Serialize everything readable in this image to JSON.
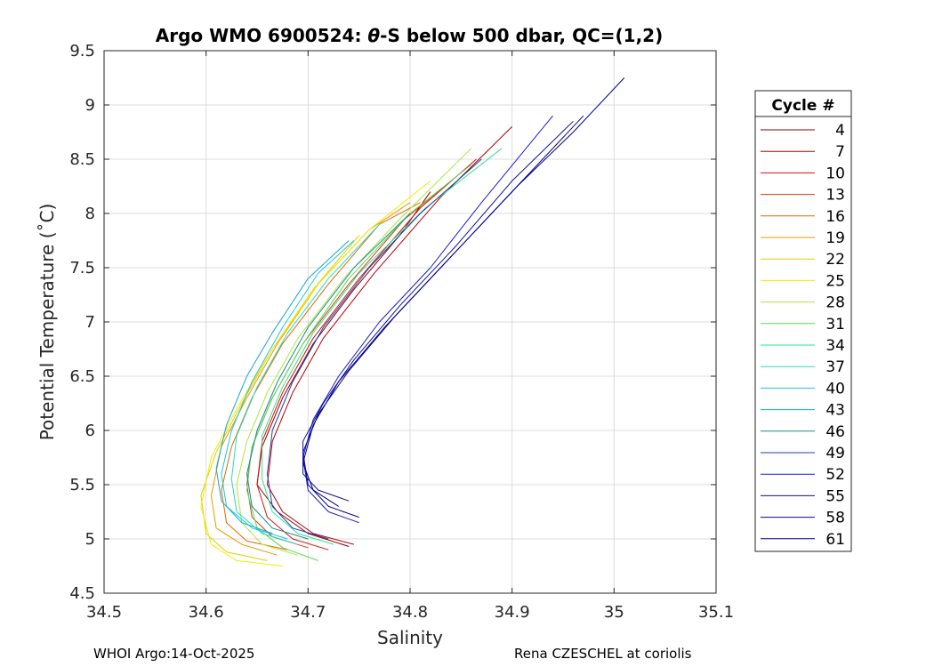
{
  "chart_data": {
    "type": "line",
    "title": "Argo WMO 6900524: θ-S below 500 dbar,  QC=(1,2)",
    "title_parts": {
      "pre": "Argo WMO 6900524: ",
      "theta": "θ",
      "post": "-S below 500 dbar,  QC=(1,2)"
    },
    "xlabel": "Salinity",
    "ylabel": "Potential Temperature (˚C)",
    "xlim": [
      34.5,
      35.1
    ],
    "ylim": [
      4.5,
      9.5
    ],
    "xticks": [
      "34.5",
      "34.6",
      "34.7",
      "34.8",
      "34.9",
      "35",
      "35.1"
    ],
    "yticks": [
      "4.5",
      "5",
      "5.5",
      "6",
      "6.5",
      "7",
      "7.5",
      "8",
      "8.5",
      "9",
      "9.5"
    ],
    "grid": true,
    "legend_position": "right",
    "legend_title": "Cycle #",
    "legend_entries": [
      {
        "label": "4",
        "color": "#8b0000"
      },
      {
        "label": "7",
        "color": "#b30000"
      },
      {
        "label": "10",
        "color": "#dd1010"
      },
      {
        "label": "13",
        "color": "#e03a10"
      },
      {
        "label": "16",
        "color": "#dd6a00"
      },
      {
        "label": "19",
        "color": "#e79a00"
      },
      {
        "label": "22",
        "color": "#e8cc00"
      },
      {
        "label": "25",
        "color": "#f0ec00"
      },
      {
        "label": "28",
        "color": "#aee63a"
      },
      {
        "label": "31",
        "color": "#55dd55"
      },
      {
        "label": "34",
        "color": "#2ee68a"
      },
      {
        "label": "37",
        "color": "#22e0c0"
      },
      {
        "label": "40",
        "color": "#18c8e0"
      },
      {
        "label": "43",
        "color": "#1aa8c8"
      },
      {
        "label": "46",
        "color": "#148c8c"
      },
      {
        "label": "49",
        "color": "#1f3fb0"
      },
      {
        "label": "52",
        "color": "#1a1ad0"
      },
      {
        "label": "55",
        "color": "#101090"
      },
      {
        "label": "58",
        "color": "#0a0a80"
      },
      {
        "label": "61",
        "color": "#00008b"
      }
    ],
    "series": [
      {
        "name": "4",
        "color": "#8b0000",
        "points": [
          [
            34.74,
            4.93
          ],
          [
            34.7,
            5.05
          ],
          [
            34.67,
            5.25
          ],
          [
            34.65,
            5.5
          ],
          [
            34.655,
            5.85
          ],
          [
            34.675,
            6.3
          ],
          [
            34.705,
            6.8
          ],
          [
            34.745,
            7.3
          ],
          [
            34.79,
            7.8
          ],
          [
            34.82,
            8.2
          ]
        ]
      },
      {
        "name": "7",
        "color": "#b30000",
        "points": [
          [
            34.745,
            4.95
          ],
          [
            34.705,
            5.05
          ],
          [
            34.675,
            5.25
          ],
          [
            34.66,
            5.5
          ],
          [
            34.665,
            5.9
          ],
          [
            34.685,
            6.35
          ],
          [
            34.715,
            6.85
          ],
          [
            34.765,
            7.45
          ],
          [
            34.83,
            8.15
          ],
          [
            34.9,
            8.8
          ]
        ]
      },
      {
        "name": "10",
        "color": "#dd1010",
        "points": [
          [
            34.72,
            4.9
          ],
          [
            34.685,
            5.0
          ],
          [
            34.66,
            5.2
          ],
          [
            34.65,
            5.5
          ],
          [
            34.655,
            5.9
          ],
          [
            34.675,
            6.35
          ],
          [
            34.705,
            6.85
          ],
          [
            34.75,
            7.4
          ],
          [
            34.81,
            8.05
          ],
          [
            34.865,
            8.5
          ]
        ]
      },
      {
        "name": "13",
        "color": "#e03a10",
        "points": [
          [
            34.7,
            4.92
          ],
          [
            34.665,
            5.02
          ],
          [
            34.645,
            5.2
          ],
          [
            34.64,
            5.5
          ],
          [
            34.645,
            5.85
          ],
          [
            34.665,
            6.3
          ],
          [
            34.695,
            6.8
          ],
          [
            34.74,
            7.35
          ],
          [
            34.795,
            7.95
          ],
          [
            34.84,
            8.3
          ]
        ]
      },
      {
        "name": "16",
        "color": "#dd6a00",
        "points": [
          [
            34.68,
            4.9
          ],
          [
            34.64,
            4.98
          ],
          [
            34.62,
            5.15
          ],
          [
            34.615,
            5.45
          ],
          [
            34.625,
            5.85
          ],
          [
            34.645,
            6.3
          ],
          [
            34.675,
            6.8
          ],
          [
            34.72,
            7.35
          ],
          [
            34.77,
            7.9
          ],
          [
            34.81,
            8.1
          ]
        ]
      },
      {
        "name": "19",
        "color": "#e79a00",
        "points": [
          [
            34.67,
            4.85
          ],
          [
            34.635,
            4.95
          ],
          [
            34.61,
            5.1
          ],
          [
            34.605,
            5.4
          ],
          [
            34.615,
            5.85
          ],
          [
            34.64,
            6.3
          ],
          [
            34.67,
            6.8
          ],
          [
            34.71,
            7.35
          ],
          [
            34.76,
            7.85
          ],
          [
            34.8,
            8.1
          ]
        ]
      },
      {
        "name": "22",
        "color": "#e8cc00",
        "points": [
          [
            34.66,
            4.8
          ],
          [
            34.62,
            4.88
          ],
          [
            34.6,
            5.05
          ],
          [
            34.595,
            5.4
          ],
          [
            34.61,
            5.8
          ],
          [
            34.635,
            6.25
          ],
          [
            34.665,
            6.75
          ],
          [
            34.705,
            7.3
          ],
          [
            34.75,
            7.8
          ]
        ]
      },
      {
        "name": "25",
        "color": "#f0ec00",
        "points": [
          [
            34.675,
            4.75
          ],
          [
            34.63,
            4.8
          ],
          [
            34.605,
            4.95
          ],
          [
            34.595,
            5.3
          ],
          [
            34.605,
            5.75
          ],
          [
            34.63,
            6.2
          ],
          [
            34.665,
            6.75
          ],
          [
            34.71,
            7.35
          ],
          [
            34.76,
            7.85
          ],
          [
            34.82,
            8.3
          ]
        ]
      },
      {
        "name": "28",
        "color": "#aee63a",
        "points": [
          [
            34.69,
            4.85
          ],
          [
            34.655,
            4.95
          ],
          [
            34.635,
            5.15
          ],
          [
            34.63,
            5.5
          ],
          [
            34.64,
            5.9
          ],
          [
            34.66,
            6.35
          ],
          [
            34.69,
            6.85
          ],
          [
            34.735,
            7.4
          ],
          [
            34.79,
            7.95
          ],
          [
            34.86,
            8.6
          ]
        ]
      },
      {
        "name": "31",
        "color": "#55dd55",
        "points": [
          [
            34.71,
            4.8
          ],
          [
            34.675,
            4.92
          ],
          [
            34.65,
            5.1
          ],
          [
            34.64,
            5.45
          ],
          [
            34.645,
            5.85
          ],
          [
            34.665,
            6.3
          ],
          [
            34.695,
            6.8
          ],
          [
            34.74,
            7.4
          ],
          [
            34.8,
            8.0
          ],
          [
            34.86,
            8.45
          ]
        ]
      },
      {
        "name": "34",
        "color": "#2ee68a",
        "points": [
          [
            34.725,
            4.95
          ],
          [
            34.69,
            5.05
          ],
          [
            34.665,
            5.25
          ],
          [
            34.655,
            5.55
          ],
          [
            34.655,
            5.95
          ],
          [
            34.675,
            6.4
          ],
          [
            34.705,
            6.9
          ],
          [
            34.75,
            7.45
          ],
          [
            34.815,
            8.05
          ],
          [
            34.89,
            8.6
          ]
        ]
      },
      {
        "name": "37",
        "color": "#22e0c0",
        "points": [
          [
            34.69,
            4.95
          ],
          [
            34.655,
            5.05
          ],
          [
            34.63,
            5.25
          ],
          [
            34.625,
            5.55
          ],
          [
            34.63,
            5.95
          ],
          [
            34.65,
            6.4
          ],
          [
            34.68,
            6.9
          ],
          [
            34.72,
            7.4
          ],
          [
            34.77,
            7.9
          ]
        ]
      },
      {
        "name": "40",
        "color": "#18c8e0",
        "points": [
          [
            34.68,
            5.0
          ],
          [
            34.645,
            5.1
          ],
          [
            34.62,
            5.3
          ],
          [
            34.615,
            5.6
          ],
          [
            34.625,
            6.0
          ],
          [
            34.645,
            6.45
          ],
          [
            34.675,
            6.95
          ],
          [
            34.71,
            7.45
          ],
          [
            34.745,
            7.75
          ]
        ]
      },
      {
        "name": "43",
        "color": "#1aa8c8",
        "points": [
          [
            34.665,
            5.05
          ],
          [
            34.635,
            5.15
          ],
          [
            34.615,
            5.35
          ],
          [
            34.61,
            5.65
          ],
          [
            34.62,
            6.05
          ],
          [
            34.64,
            6.5
          ],
          [
            34.665,
            6.9
          ],
          [
            34.7,
            7.4
          ],
          [
            34.74,
            7.75
          ]
        ]
      },
      {
        "name": "46",
        "color": "#148c8c",
        "points": [
          [
            34.7,
            5.0
          ],
          [
            34.665,
            5.1
          ],
          [
            34.645,
            5.3
          ],
          [
            34.64,
            5.6
          ],
          [
            34.65,
            6.0
          ],
          [
            34.67,
            6.45
          ],
          [
            34.7,
            6.95
          ],
          [
            34.745,
            7.5
          ],
          [
            34.8,
            8.0
          ]
        ]
      },
      {
        "name": "49",
        "color": "#1f3fb0",
        "points": [
          [
            34.72,
            5.0
          ],
          [
            34.685,
            5.1
          ],
          [
            34.665,
            5.3
          ],
          [
            34.66,
            5.6
          ],
          [
            34.665,
            6.0
          ],
          [
            34.685,
            6.45
          ],
          [
            34.715,
            6.95
          ],
          [
            34.76,
            7.5
          ],
          [
            34.81,
            8.0
          ],
          [
            34.87,
            8.5
          ]
        ]
      },
      {
        "name": "52",
        "color": "#1a1ad0",
        "points": [
          [
            34.75,
            5.15
          ],
          [
            34.72,
            5.25
          ],
          [
            34.7,
            5.45
          ],
          [
            34.695,
            5.75
          ],
          [
            34.705,
            6.1
          ],
          [
            34.73,
            6.5
          ],
          [
            34.77,
            7.0
          ],
          [
            34.82,
            7.5
          ],
          [
            34.87,
            8.1
          ],
          [
            34.94,
            8.9
          ]
        ]
      },
      {
        "name": "55",
        "color": "#101090",
        "points": [
          [
            34.74,
            5.35
          ],
          [
            34.71,
            5.45
          ],
          [
            34.695,
            5.6
          ],
          [
            34.695,
            5.9
          ],
          [
            34.715,
            6.25
          ],
          [
            34.745,
            6.65
          ],
          [
            34.79,
            7.15
          ],
          [
            34.845,
            7.7
          ],
          [
            34.9,
            8.3
          ],
          [
            34.96,
            8.85
          ]
        ]
      },
      {
        "name": "58",
        "color": "#0a0a80",
        "points": [
          [
            34.75,
            5.2
          ],
          [
            34.72,
            5.3
          ],
          [
            34.7,
            5.5
          ],
          [
            34.695,
            5.8
          ],
          [
            34.71,
            6.15
          ],
          [
            34.74,
            6.55
          ],
          [
            34.785,
            7.05
          ],
          [
            34.845,
            7.65
          ],
          [
            34.91,
            8.3
          ],
          [
            34.97,
            8.9
          ]
        ]
      },
      {
        "name": "61",
        "color": "#00008b",
        "points": [
          [
            34.73,
            5.3
          ],
          [
            34.705,
            5.45
          ],
          [
            34.695,
            5.7
          ],
          [
            34.705,
            6.05
          ],
          [
            34.73,
            6.45
          ],
          [
            34.775,
            6.95
          ],
          [
            34.835,
            7.55
          ],
          [
            34.905,
            8.25
          ],
          [
            34.96,
            8.75
          ],
          [
            35.01,
            9.25
          ]
        ]
      }
    ]
  },
  "footer": {
    "left": "WHOI Argo:14-Oct-2025",
    "right": "Rena CZESCHEL at coriolis"
  }
}
